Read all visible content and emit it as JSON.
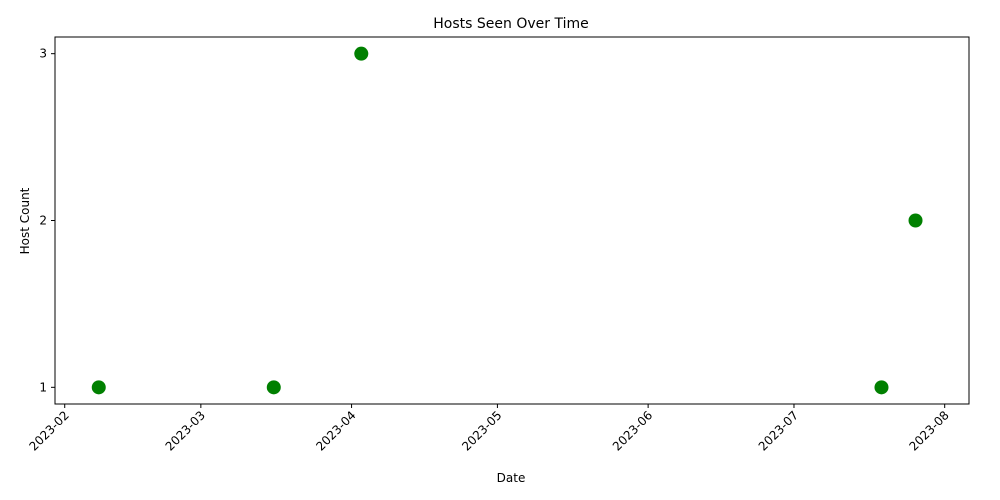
{
  "chart_data": {
    "type": "scatter",
    "title": "Hosts Seen Over Time",
    "xlabel": "Date",
    "ylabel": "Host Count",
    "x_axis_kind": "date",
    "xlim": [
      "2023-01-30",
      "2023-08-06"
    ],
    "ylim": [
      0.9,
      3.1
    ],
    "x_ticks": [
      "2023-02",
      "2023-03",
      "2023-04",
      "2023-05",
      "2023-06",
      "2023-07",
      "2023-08"
    ],
    "y_ticks": [
      1,
      2,
      3
    ],
    "grid": false,
    "legend": "none",
    "marker_color": "#008000",
    "series": [
      {
        "points": [
          {
            "x": "2023-02-08",
            "y": 1
          },
          {
            "x": "2023-03-16",
            "y": 1
          },
          {
            "x": "2023-04-03",
            "y": 3
          },
          {
            "x": "2023-07-19",
            "y": 1
          },
          {
            "x": "2023-07-26",
            "y": 2
          }
        ]
      }
    ]
  }
}
